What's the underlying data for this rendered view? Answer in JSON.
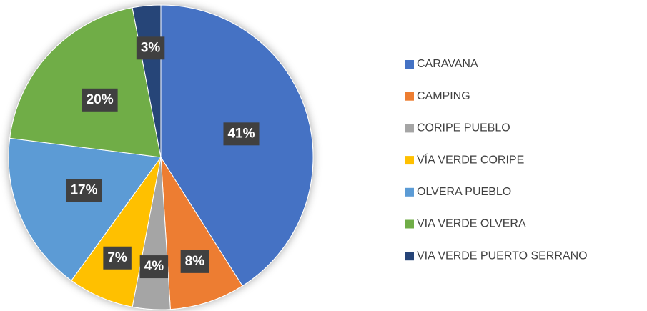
{
  "chart_data": {
    "type": "pie",
    "categories": [
      "CARAVANA",
      "CAMPING",
      "CORIPE PUEBLO",
      "VÍA VERDE CORIPE",
      "OLVERA PUEBLO",
      "VIA VERDE OLVERA",
      "VIA VERDE PUERTO SERRANO"
    ],
    "values": [
      41,
      8,
      4,
      7,
      17,
      20,
      3
    ],
    "value_labels": [
      "41%",
      "8%",
      "4%",
      "7%",
      "17%",
      "20%",
      "3%"
    ],
    "colors": [
      "#4472c4",
      "#ed7d31",
      "#a5a5a5",
      "#ffc000",
      "#5b9bd5",
      "#70ad47",
      "#264478"
    ],
    "legend": "right"
  }
}
